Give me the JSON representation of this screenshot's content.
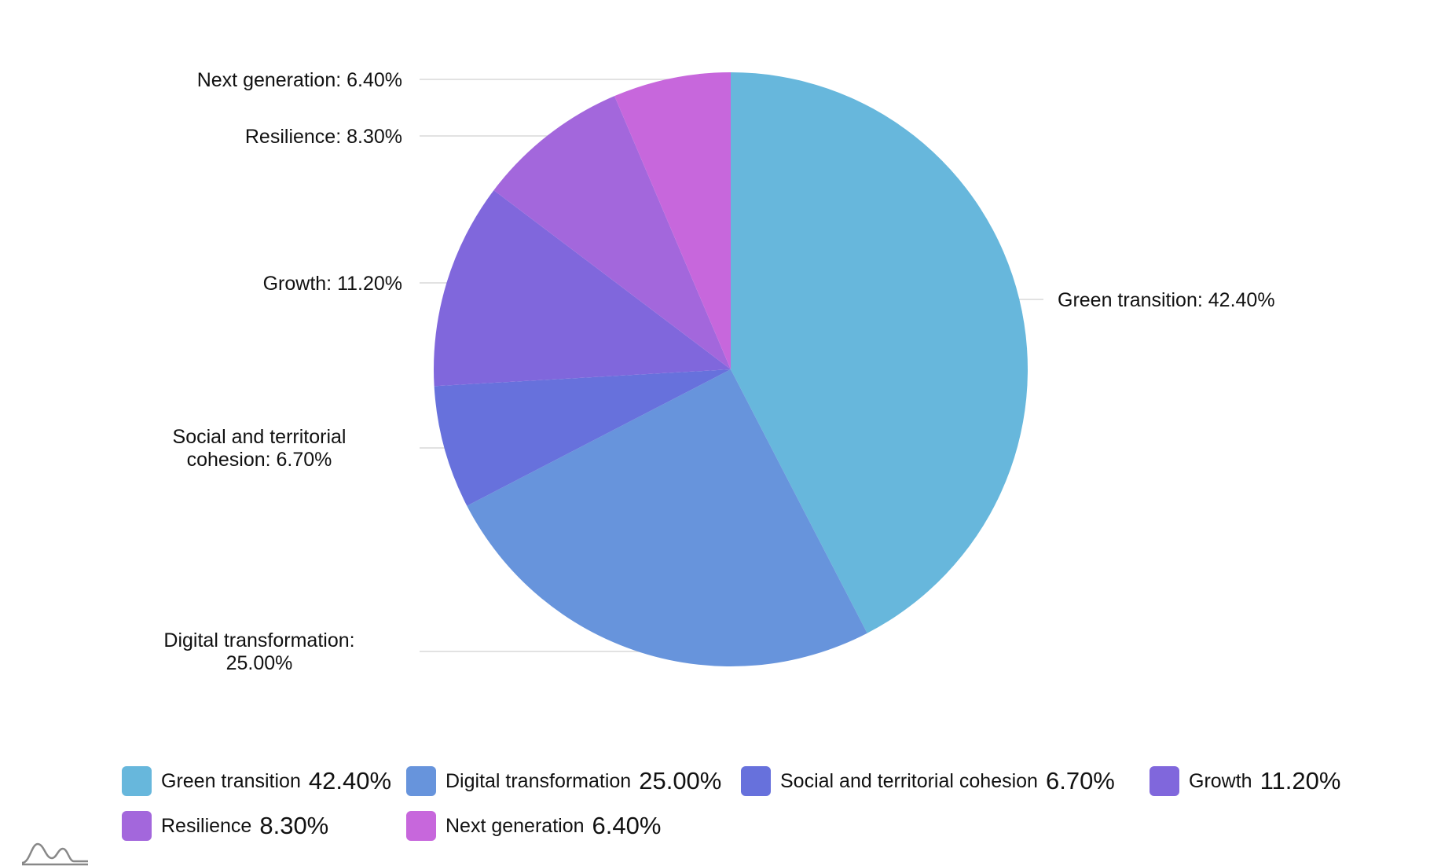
{
  "chart_data": {
    "type": "pie",
    "categories": [
      "Green transition",
      "Digital transformation",
      "Social and territorial cohesion",
      "Growth",
      "Resilience",
      "Next generation"
    ],
    "values": [
      42.4,
      25.0,
      6.7,
      11.2,
      8.3,
      6.4
    ],
    "value_labels": [
      "42.40%",
      "25.00%",
      "6.70%",
      "11.20%",
      "8.30%",
      "6.40%"
    ],
    "slice_labels": [
      "Green transition: 42.40%",
      "Digital transformation: 25.00%",
      "Social and territorial cohesion: 6.70%",
      "Growth: 11.20%",
      "Resilience: 8.30%",
      "Next generation: 6.40%"
    ],
    "colors": [
      "#67b7dc",
      "#6794dc",
      "#6771dc",
      "#8067dc",
      "#a367dc",
      "#c767dc"
    ],
    "legend_position": "bottom"
  }
}
